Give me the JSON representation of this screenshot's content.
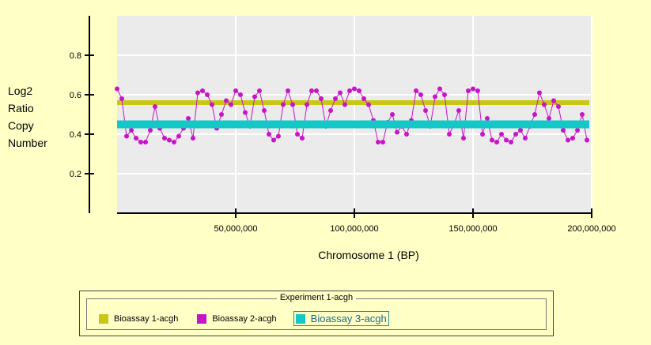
{
  "chart_data": {
    "type": "line",
    "x_label": "Chromosome 1 (BP)",
    "y_label": "Log2 Ratio Copy Number",
    "legend_title": "Experiment 1-acgh",
    "xlim": [
      0,
      200000000
    ],
    "xticks": [
      {
        "value": 50000000,
        "label": "50,000,000"
      },
      {
        "value": 100000000,
        "label": "100,000,000"
      },
      {
        "value": 150000000,
        "label": "150,000,000"
      },
      {
        "value": 200000000,
        "label": "200,000,000"
      }
    ],
    "ylim": [
      0,
      1.0
    ],
    "yticks": [
      0.2,
      0.4,
      0.6,
      0.8
    ],
    "grid": true,
    "selected_series": 2,
    "series": [
      {
        "name": "Bioassay 1-acgh",
        "color": "#c8c814",
        "width": 6,
        "markers": false,
        "x": [
          0,
          199000000
        ],
        "values": [
          0.56,
          0.56
        ]
      },
      {
        "name": "Bioassay 2-acgh",
        "color": "#c814c8",
        "width": 1,
        "markers": true,
        "x": [
          0,
          2000000,
          4000000,
          6000000,
          8000000,
          10000000,
          12000000,
          14000000,
          16000000,
          18000000,
          20000000,
          22000000,
          24000000,
          26000000,
          28000000,
          30000000,
          32000000,
          34000000,
          36000000,
          38000000,
          40000000,
          42000000,
          44000000,
          46000000,
          48000000,
          50000000,
          52000000,
          54000000,
          56000000,
          58000000,
          60000000,
          62000000,
          64000000,
          66000000,
          68000000,
          70000000,
          72000000,
          74000000,
          76000000,
          78000000,
          80000000,
          82000000,
          84000000,
          86000000,
          88000000,
          90000000,
          92000000,
          94000000,
          96000000,
          98000000,
          100000000,
          102000000,
          104000000,
          106000000,
          108000000,
          110000000,
          112000000,
          114000000,
          116000000,
          118000000,
          120000000,
          122000000,
          124000000,
          126000000,
          128000000,
          130000000,
          132000000,
          134000000,
          136000000,
          138000000,
          140000000,
          142000000,
          144000000,
          146000000,
          148000000,
          150000000,
          152000000,
          154000000,
          156000000,
          158000000,
          160000000,
          162000000,
          164000000,
          166000000,
          168000000,
          170000000,
          172000000,
          174000000,
          176000000,
          178000000,
          180000000,
          182000000,
          184000000,
          186000000,
          188000000,
          190000000,
          192000000,
          194000000,
          196000000,
          198000000
        ],
        "values": [
          0.63,
          0.58,
          0.39,
          0.42,
          0.38,
          0.36,
          0.36,
          0.42,
          0.54,
          0.43,
          0.38,
          0.37,
          0.36,
          0.39,
          0.43,
          0.48,
          0.38,
          0.61,
          0.62,
          0.6,
          0.55,
          0.43,
          0.5,
          0.57,
          0.55,
          0.62,
          0.6,
          0.51,
          0.44,
          0.59,
          0.62,
          0.52,
          0.4,
          0.37,
          0.39,
          0.55,
          0.62,
          0.55,
          0.4,
          0.38,
          0.55,
          0.62,
          0.62,
          0.58,
          0.44,
          0.52,
          0.58,
          0.61,
          0.55,
          0.62,
          0.63,
          0.62,
          0.58,
          0.55,
          0.47,
          0.36,
          0.36,
          0.46,
          0.5,
          0.41,
          0.44,
          0.4,
          0.47,
          0.62,
          0.6,
          0.52,
          0.44,
          0.59,
          0.63,
          0.6,
          0.4,
          0.45,
          0.52,
          0.38,
          0.62,
          0.63,
          0.62,
          0.4,
          0.48,
          0.37,
          0.36,
          0.4,
          0.37,
          0.36,
          0.4,
          0.42,
          0.38,
          0.44,
          0.5,
          0.61,
          0.55,
          0.48,
          0.57,
          0.54,
          0.42,
          0.37,
          0.38,
          0.42,
          0.5,
          0.37
        ]
      },
      {
        "name": "Bioassay 3-acgh",
        "color": "#14c8c8",
        "width": 10,
        "markers": false,
        "x": [
          0,
          199000000
        ],
        "values": [
          0.45,
          0.45
        ]
      }
    ]
  }
}
